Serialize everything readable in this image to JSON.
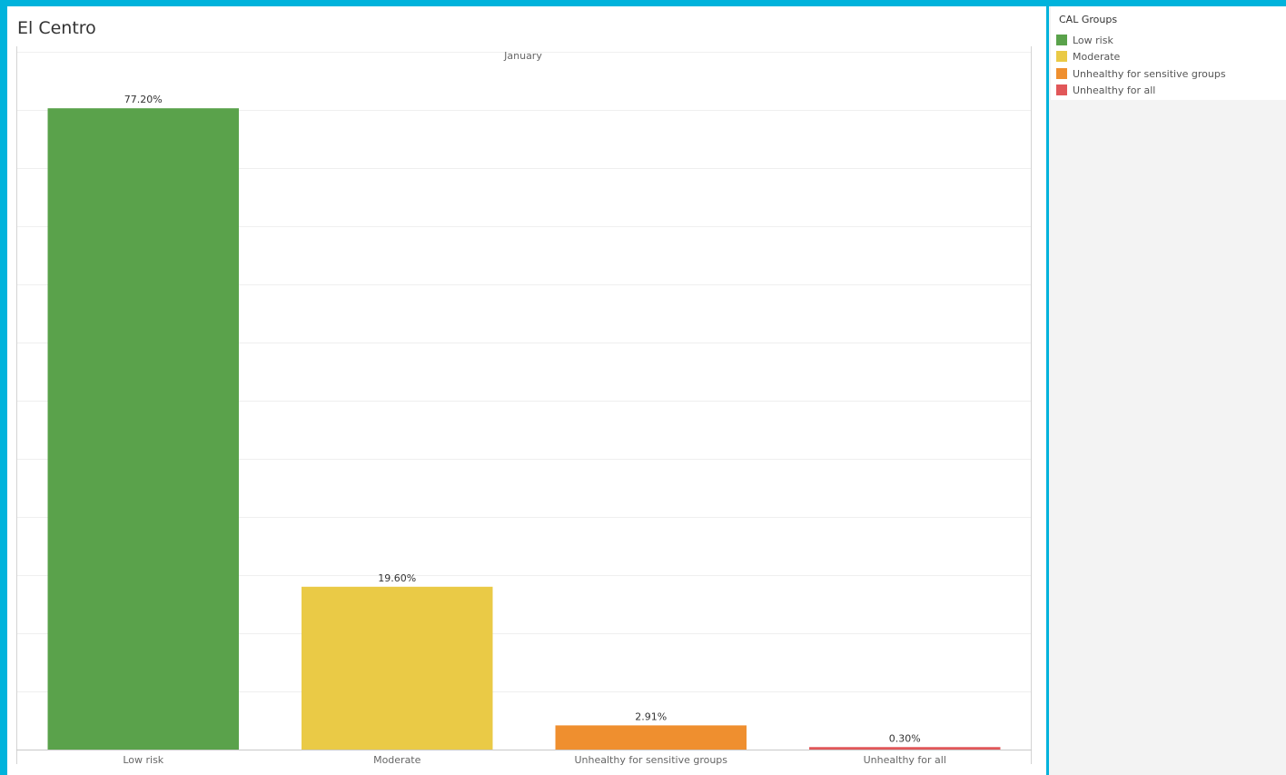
{
  "chart_data": {
    "type": "bar",
    "title": "El Centro",
    "column_header": "January",
    "categories": [
      "Low risk",
      "Moderate",
      "Unhealthy for sensitive groups",
      "Unhealthy for all"
    ],
    "values": [
      77.2,
      19.6,
      2.91,
      0.3
    ],
    "data_labels": [
      "77.20%",
      "19.60%",
      "2.91%",
      "0.30%"
    ],
    "colors": [
      "#5aa24b",
      "#eaca46",
      "#ef8f2f",
      "#e15759"
    ],
    "ylim": [
      0,
      84
    ],
    "grid": true,
    "legend": {
      "title": "CAL Groups",
      "placement": "right",
      "items": [
        {
          "label": "Low risk",
          "color": "#5aa24b"
        },
        {
          "label": "Moderate",
          "color": "#eaca46"
        },
        {
          "label": "Unhealthy for sensitive groups",
          "color": "#ef8f2f"
        },
        {
          "label": "Unhealthy for all",
          "color": "#e15759"
        }
      ]
    }
  }
}
